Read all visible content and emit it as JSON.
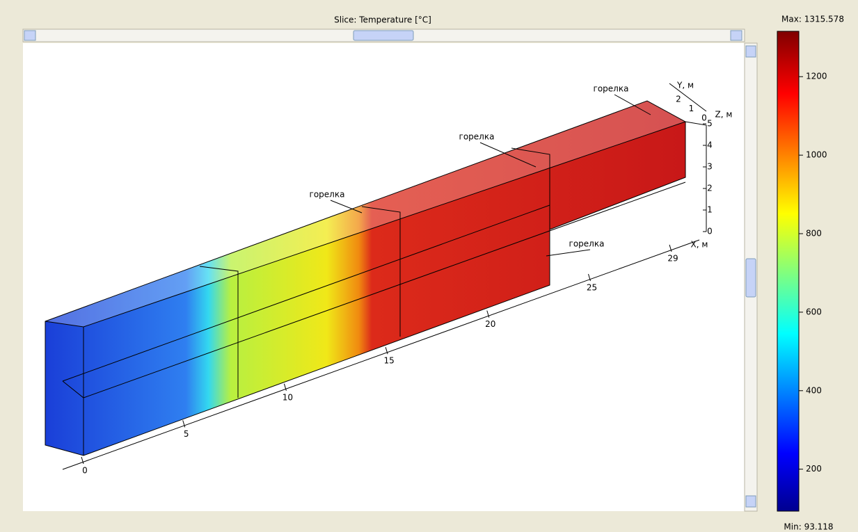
{
  "window": {
    "title": "Slice: Temperature [°C]"
  },
  "plot": {
    "annotations": [
      "горелка",
      "горелка",
      "горелка",
      "горелка"
    ],
    "axes": {
      "x": {
        "label": "X, м",
        "ticks": [
          0,
          5,
          10,
          15,
          20,
          25,
          29
        ]
      },
      "y": {
        "label": "Y, м",
        "ticks": [
          2,
          1,
          0
        ]
      },
      "z": {
        "label": "Z, м",
        "ticks": [
          5,
          4,
          3,
          2,
          1,
          0
        ]
      }
    }
  },
  "colorbar": {
    "max": {
      "value": 1315.578,
      "label": "Max: 1315.578"
    },
    "min": {
      "value": 93.118,
      "label": "Min: 93.118"
    },
    "ticks": [
      200,
      400,
      600,
      800,
      1000,
      1200
    ]
  }
}
